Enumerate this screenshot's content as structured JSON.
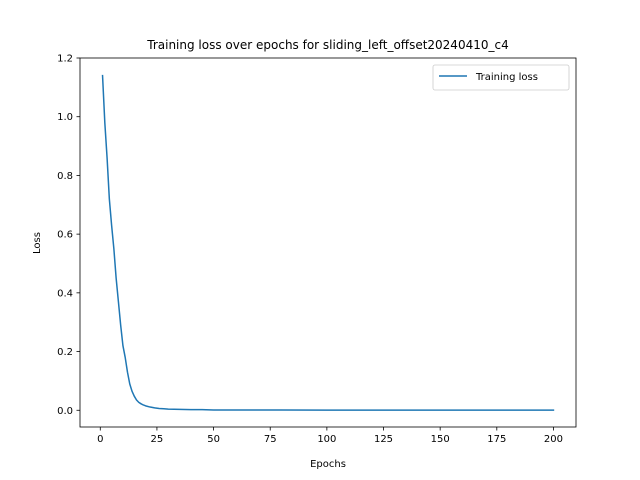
{
  "chart_data": {
    "type": "line",
    "title": "Training loss over epochs for sliding_left_offset20240410_c4",
    "xlabel": "Epochs",
    "ylabel": "Loss",
    "xlim": [
      -8.95,
      209.95
    ],
    "ylim": [
      -0.057,
      1.2
    ],
    "xticks": [
      0,
      25,
      50,
      75,
      100,
      125,
      150,
      175,
      200
    ],
    "yticks": [
      0.0,
      0.2,
      0.4,
      0.6,
      0.8,
      1.0,
      1.2
    ],
    "xtick_labels": [
      "0",
      "25",
      "50",
      "75",
      "100",
      "125",
      "150",
      "175",
      "200"
    ],
    "ytick_labels": [
      "0.0",
      "0.2",
      "0.4",
      "0.6",
      "0.8",
      "1.0",
      "1.2"
    ],
    "grid": false,
    "legend_position": "top-right",
    "colors": {
      "series": "#1f77b4"
    },
    "series": [
      {
        "name": "Training loss",
        "x": [
          1,
          2,
          3,
          4,
          5,
          6,
          7,
          8,
          9,
          10,
          11,
          12,
          13,
          14,
          15,
          16,
          17,
          18,
          19,
          20,
          22,
          24,
          26,
          28,
          30,
          35,
          40,
          45,
          50,
          60,
          70,
          80,
          100,
          125,
          150,
          175,
          200
        ],
        "values": [
          1.14,
          0.98,
          0.86,
          0.72,
          0.63,
          0.55,
          0.45,
          0.37,
          0.29,
          0.22,
          0.18,
          0.13,
          0.09,
          0.065,
          0.048,
          0.035,
          0.027,
          0.022,
          0.018,
          0.015,
          0.011,
          0.008,
          0.006,
          0.005,
          0.004,
          0.003,
          0.002,
          0.002,
          0.001,
          0.001,
          0.001,
          0.0008,
          0.0006,
          0.0005,
          0.0004,
          0.0003,
          0.0003
        ]
      }
    ]
  }
}
